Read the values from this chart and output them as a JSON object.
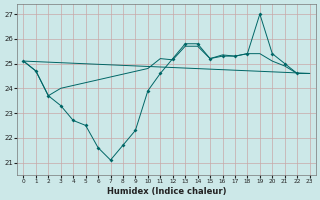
{
  "xlabel": "Humidex (Indice chaleur)",
  "bg_color": "#cce8e8",
  "grid_color": "#aacccc",
  "line_color": "#006666",
  "ylim": [
    20.5,
    27.4
  ],
  "xlim": [
    -0.5,
    23.5
  ],
  "yticks": [
    21,
    22,
    23,
    24,
    25,
    26,
    27
  ],
  "xticks": [
    0,
    1,
    2,
    3,
    4,
    5,
    6,
    7,
    8,
    9,
    10,
    11,
    12,
    13,
    14,
    15,
    16,
    17,
    18,
    19,
    20,
    21,
    22,
    23
  ],
  "series": [
    {
      "x": [
        0,
        1,
        2,
        3,
        4,
        5,
        6,
        7,
        8,
        9,
        10,
        11,
        12,
        13,
        14,
        15,
        16,
        17,
        18,
        19,
        20,
        21,
        22
      ],
      "y": [
        25.1,
        24.7,
        23.7,
        23.3,
        22.7,
        22.5,
        21.6,
        21.1,
        21.7,
        22.3,
        23.9,
        24.6,
        25.2,
        25.8,
        25.8,
        25.2,
        25.3,
        25.3,
        25.4,
        27.0,
        25.4,
        25.0,
        24.6
      ],
      "marker": true
    },
    {
      "x": [
        0,
        23
      ],
      "y": [
        25.1,
        24.6
      ],
      "marker": false
    },
    {
      "x": [
        0,
        1,
        2,
        3,
        10,
        11,
        12,
        13,
        14,
        15,
        16,
        17,
        18,
        19,
        20,
        21,
        22,
        23
      ],
      "y": [
        25.1,
        24.7,
        23.7,
        24.0,
        24.8,
        25.2,
        25.15,
        25.7,
        25.7,
        25.2,
        25.35,
        25.3,
        25.4,
        25.4,
        25.1,
        24.9,
        24.6,
        24.6
      ],
      "marker": false
    }
  ]
}
